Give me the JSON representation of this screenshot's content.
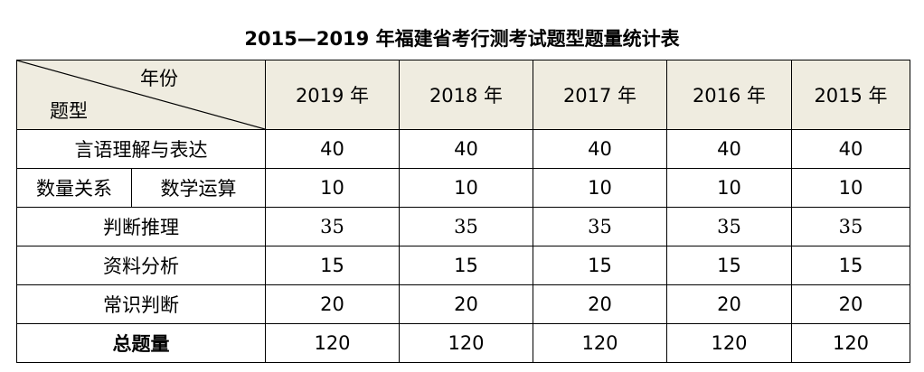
{
  "title": "2015—2019 年福建省考行测考试题型题量统计表",
  "header": {
    "year_label": "年份",
    "type_label": "题型",
    "years": [
      "2019 年",
      "2018 年",
      "2017 年",
      "2016 年",
      "2015 年"
    ]
  },
  "rows": [
    {
      "type": "言语理解与表达",
      "values": [
        "40",
        "40",
        "40",
        "40",
        "40"
      ]
    },
    {
      "type": "数量关系",
      "subtype": "数学运算",
      "values": [
        "10",
        "10",
        "10",
        "10",
        "10"
      ]
    },
    {
      "type": "判断推理",
      "values": [
        "35",
        "35",
        "35",
        "35",
        "35"
      ]
    },
    {
      "type": "资料分析",
      "values": [
        "15",
        "15",
        "15",
        "15",
        "15"
      ]
    },
    {
      "type": "常识判断",
      "values": [
        "20",
        "20",
        "20",
        "20",
        "20"
      ]
    }
  ],
  "total": {
    "label": "总题量",
    "values": [
      "120",
      "120",
      "120",
      "120",
      "120"
    ]
  },
  "colors": {
    "header_bg": "#efece0",
    "border": "#000000"
  }
}
